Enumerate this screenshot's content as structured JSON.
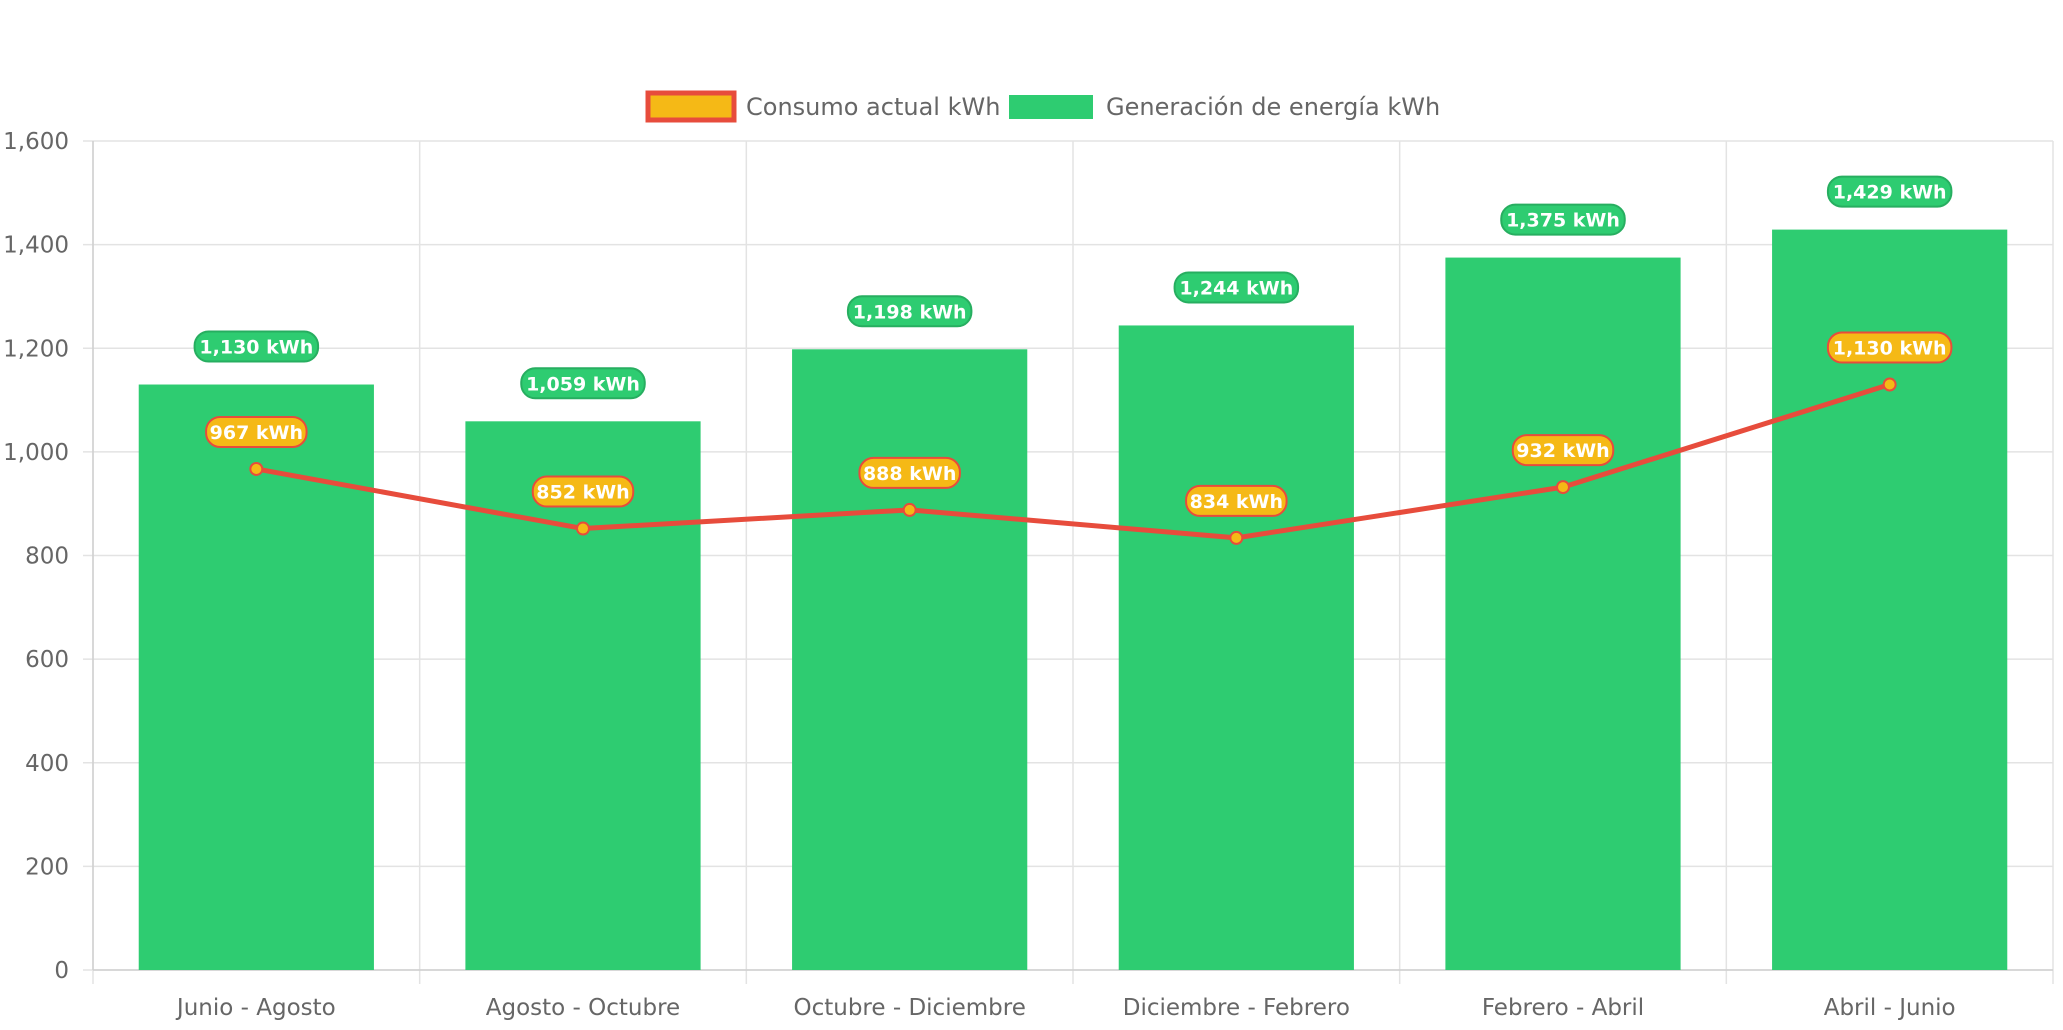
{
  "chart_data": {
    "type": "bar",
    "categories": [
      "Junio - Agosto",
      "Agosto - Octubre",
      "Octubre - Diciembre",
      "Diciembre - Febrero",
      "Febrero - Abril",
      "Abril - Junio"
    ],
    "series": [
      {
        "name": "Consumo actual kWh",
        "type": "line",
        "values": [
          967,
          852,
          888,
          834,
          932,
          1130
        ],
        "labels": [
          "967 kWh",
          "852 kWh",
          "888 kWh",
          "834 kWh",
          "932 kWh",
          "1,130 kWh"
        ],
        "line_color": "#e74c3c",
        "point_color": "#f5b916"
      },
      {
        "name": "Generación de energía kWh",
        "type": "bar",
        "values": [
          1130,
          1059,
          1198,
          1244,
          1375,
          1429
        ],
        "labels": [
          "1,130 kWh",
          "1,059 kWh",
          "1,198 kWh",
          "1,244 kWh",
          "1,375 kWh",
          "1,429 kWh"
        ],
        "color": "#2ecc71"
      }
    ],
    "ylim": [
      0,
      1600
    ],
    "yticks": [
      0,
      200,
      400,
      600,
      800,
      1000,
      1200,
      1400,
      1600
    ],
    "ytick_labels": [
      "0",
      "200",
      "400",
      "600",
      "800",
      "1,000",
      "1,200",
      "1,400",
      "1,600"
    ],
    "grid": true,
    "legend_position": "top-center",
    "title": "",
    "xlabel": "",
    "ylabel": ""
  }
}
